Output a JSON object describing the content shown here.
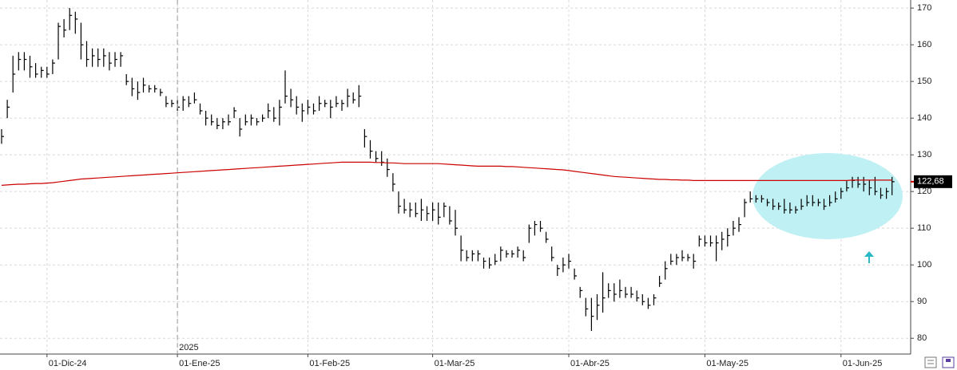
{
  "chart_data": {
    "type": "ohlc",
    "categories": [
      null,
      null,
      null,
      null,
      null,
      null,
      null,
      null,
      "01-Dic-24",
      null,
      null,
      null,
      null,
      null,
      null,
      null,
      null,
      null,
      null,
      null,
      null,
      null,
      null,
      null,
      null,
      null,
      null,
      null,
      null,
      null,
      null,
      "01-Ene-25",
      null,
      null,
      null,
      null,
      null,
      null,
      null,
      null,
      null,
      null,
      null,
      null,
      null,
      null,
      null,
      null,
      null,
      null,
      null,
      null,
      null,
      null,
      "01-Feb-25",
      null,
      null,
      null,
      null,
      null,
      null,
      null,
      null,
      null,
      null,
      null,
      null,
      null,
      null,
      null,
      null,
      null,
      null,
      null,
      null,
      null,
      "01-Mar-25",
      null,
      null,
      null,
      null,
      null,
      null,
      null,
      null,
      null,
      null,
      null,
      null,
      null,
      null,
      null,
      null,
      null,
      null,
      null,
      null,
      null,
      null,
      null,
      "01-Abr-25",
      null,
      null,
      null,
      null,
      null,
      null,
      null,
      null,
      null,
      null,
      null,
      null,
      null,
      null,
      null,
      null,
      null,
      null,
      null,
      null,
      null,
      null,
      null,
      "01-May-25",
      null,
      null,
      null,
      null,
      null,
      null,
      null,
      null,
      null,
      null,
      null,
      null,
      null,
      null,
      null,
      null,
      null,
      null,
      null,
      null,
      null,
      null,
      null,
      "01-Jun-25",
      null,
      null,
      null,
      null,
      null,
      null,
      null,
      null,
      null
    ],
    "year_label": "2025",
    "year_label_at": "01-Ene-25",
    "color": "#000000",
    "high": [
      137,
      145,
      157,
      158,
      158,
      157,
      155,
      154,
      154,
      156,
      166,
      167,
      170,
      169,
      166,
      161,
      159,
      159,
      159,
      158,
      158,
      158,
      152,
      151,
      150,
      151,
      149,
      149,
      148,
      146,
      145,
      145,
      146,
      146,
      147,
      144,
      142,
      141,
      140,
      140,
      141,
      143,
      140,
      141,
      141,
      140,
      141,
      144,
      143,
      145,
      153,
      148,
      146,
      144,
      145,
      144,
      146,
      145,
      145,
      146,
      145,
      148,
      147,
      149,
      137,
      134,
      131,
      131,
      129,
      125,
      120,
      118,
      117,
      117,
      118,
      116,
      117,
      117,
      117,
      116,
      115,
      108,
      104,
      104,
      104,
      102,
      102,
      103,
      105,
      104,
      104,
      105,
      104,
      111,
      112,
      112,
      109,
      105,
      100,
      102,
      103,
      99,
      94,
      91,
      91,
      92,
      98,
      95,
      95,
      96,
      94,
      94,
      93,
      92,
      91,
      92,
      97,
      101,
      103,
      103,
      104,
      103,
      103,
      108,
      108,
      108,
      108,
      109,
      110,
      112,
      113,
      118,
      120,
      119,
      119,
      118,
      118,
      117,
      118,
      117,
      116,
      118,
      119,
      119,
      118,
      118,
      119,
      120,
      121,
      123,
      124,
      124,
      124,
      123,
      124,
      121,
      121,
      124
    ],
    "low": [
      133,
      140,
      147,
      153,
      153,
      151,
      151,
      151,
      151,
      152,
      156,
      162,
      164,
      163,
      156,
      154,
      154,
      154,
      154,
      153,
      154,
      154,
      149,
      146,
      145,
      147,
      147,
      147,
      146,
      143,
      143,
      142,
      142,
      143,
      144,
      141,
      138,
      138,
      137,
      137,
      138,
      140,
      135,
      138,
      138,
      138,
      139,
      140,
      139,
      138,
      144,
      143,
      141,
      139,
      141,
      141,
      142,
      143,
      140,
      143,
      142,
      143,
      144,
      143,
      132,
      129,
      128,
      127,
      124,
      120,
      114,
      114,
      113,
      113,
      112,
      112,
      112,
      111,
      113,
      111,
      108,
      101,
      101,
      101,
      101,
      99,
      99,
      100,
      101,
      102,
      102,
      102,
      101,
      106,
      108,
      109,
      106,
      101,
      97,
      98,
      99,
      96,
      91,
      86,
      82,
      85,
      87,
      91,
      90,
      91,
      91,
      91,
      90,
      89,
      88,
      89,
      94,
      96,
      100,
      100,
      101,
      101,
      99,
      105,
      105,
      105,
      101,
      104,
      105,
      108,
      109,
      113,
      117,
      117,
      117,
      116,
      115,
      115,
      114,
      114,
      114,
      115,
      116,
      116,
      116,
      115,
      116,
      117,
      118,
      120,
      121,
      121,
      120,
      119,
      119,
      118,
      118,
      119
    ],
    "close": [
      135,
      143,
      152,
      156,
      156,
      154,
      152,
      153,
      152,
      155,
      165,
      164,
      168,
      167,
      160,
      156,
      157,
      156,
      157,
      155,
      156,
      157,
      150,
      148,
      147,
      149,
      148,
      148,
      147,
      144,
      144,
      143,
      145,
      144,
      145,
      142,
      140,
      139,
      138,
      139,
      139,
      142,
      137,
      139,
      140,
      139,
      140,
      142,
      140,
      143,
      146,
      145,
      143,
      142,
      143,
      142,
      144,
      144,
      143,
      144,
      144,
      146,
      145,
      146,
      135,
      131,
      129,
      128,
      126,
      122,
      116,
      115,
      115,
      114,
      115,
      114,
      115,
      113,
      116,
      112,
      110,
      104,
      102,
      103,
      103,
      101,
      100,
      101,
      104,
      103,
      103,
      104,
      102,
      110,
      111,
      110,
      107,
      102,
      99,
      100,
      101,
      97,
      93,
      88,
      86,
      89,
      91,
      93,
      92,
      93,
      92,
      92,
      91,
      90,
      89,
      91,
      95,
      99,
      101,
      102,
      102,
      102,
      101,
      107,
      106,
      106,
      106,
      107,
      108,
      110,
      111,
      117,
      118,
      118,
      118,
      117,
      116,
      116,
      115,
      115,
      115,
      116,
      117,
      117,
      117,
      116,
      117,
      118,
      120,
      121,
      123,
      122,
      122,
      121,
      120,
      119,
      120,
      122.68
    ],
    "moving_average": {
      "color": "#cc0000",
      "values": [
        121.7,
        121.8,
        121.9,
        122.0,
        122.0,
        122.1,
        122.2,
        122.2,
        122.3,
        122.4,
        122.6,
        122.8,
        123.0,
        123.2,
        123.4,
        123.5,
        123.6,
        123.7,
        123.8,
        123.9,
        124.0,
        124.1,
        124.2,
        124.3,
        124.4,
        124.5,
        124.6,
        124.7,
        124.8,
        124.9,
        125.0,
        125.1,
        125.2,
        125.3,
        125.4,
        125.5,
        125.6,
        125.7,
        125.8,
        125.9,
        126.0,
        126.1,
        126.2,
        126.3,
        126.4,
        126.5,
        126.6,
        126.7,
        126.8,
        126.9,
        127.0,
        127.1,
        127.2,
        127.3,
        127.4,
        127.5,
        127.6,
        127.7,
        127.8,
        127.9,
        128.0,
        128.0,
        128.0,
        128.0,
        128.0,
        128.0,
        127.9,
        127.9,
        127.8,
        127.8,
        127.7,
        127.6,
        127.6,
        127.6,
        127.6,
        127.6,
        127.6,
        127.6,
        127.5,
        127.4,
        127.3,
        127.2,
        127.1,
        127.0,
        126.9,
        126.9,
        126.9,
        126.9,
        126.9,
        126.8,
        126.8,
        126.7,
        126.6,
        126.5,
        126.4,
        126.3,
        126.2,
        126.1,
        126.0,
        125.9,
        125.7,
        125.5,
        125.3,
        125.1,
        124.9,
        124.7,
        124.5,
        124.3,
        124.1,
        124.0,
        123.9,
        123.8,
        123.7,
        123.6,
        123.5,
        123.4,
        123.3,
        123.3,
        123.2,
        123.2,
        123.1,
        123.1,
        123.0,
        123.0,
        123.0,
        123.0,
        123.0,
        123.0,
        123.0,
        123.0,
        123.0,
        123.0,
        123.0,
        123.0,
        123.0,
        123.0,
        123.0,
        123.0,
        123.0,
        123.0,
        123.0,
        123.0,
        123.0,
        123.0,
        123.0,
        123.0,
        123.0,
        123.0,
        123.0,
        123.0,
        123.1,
        123.1,
        123.1,
        123.1,
        123.1,
        123.1,
        123.1,
        123.1
      ]
    },
    "last_price": {
      "value": 122.68,
      "label": "122,68"
    },
    "ylim": [
      75.7,
      172.2
    ],
    "yticks": [
      80,
      90,
      100,
      110,
      120,
      130,
      140,
      150,
      160,
      170
    ],
    "grid": true
  }
}
